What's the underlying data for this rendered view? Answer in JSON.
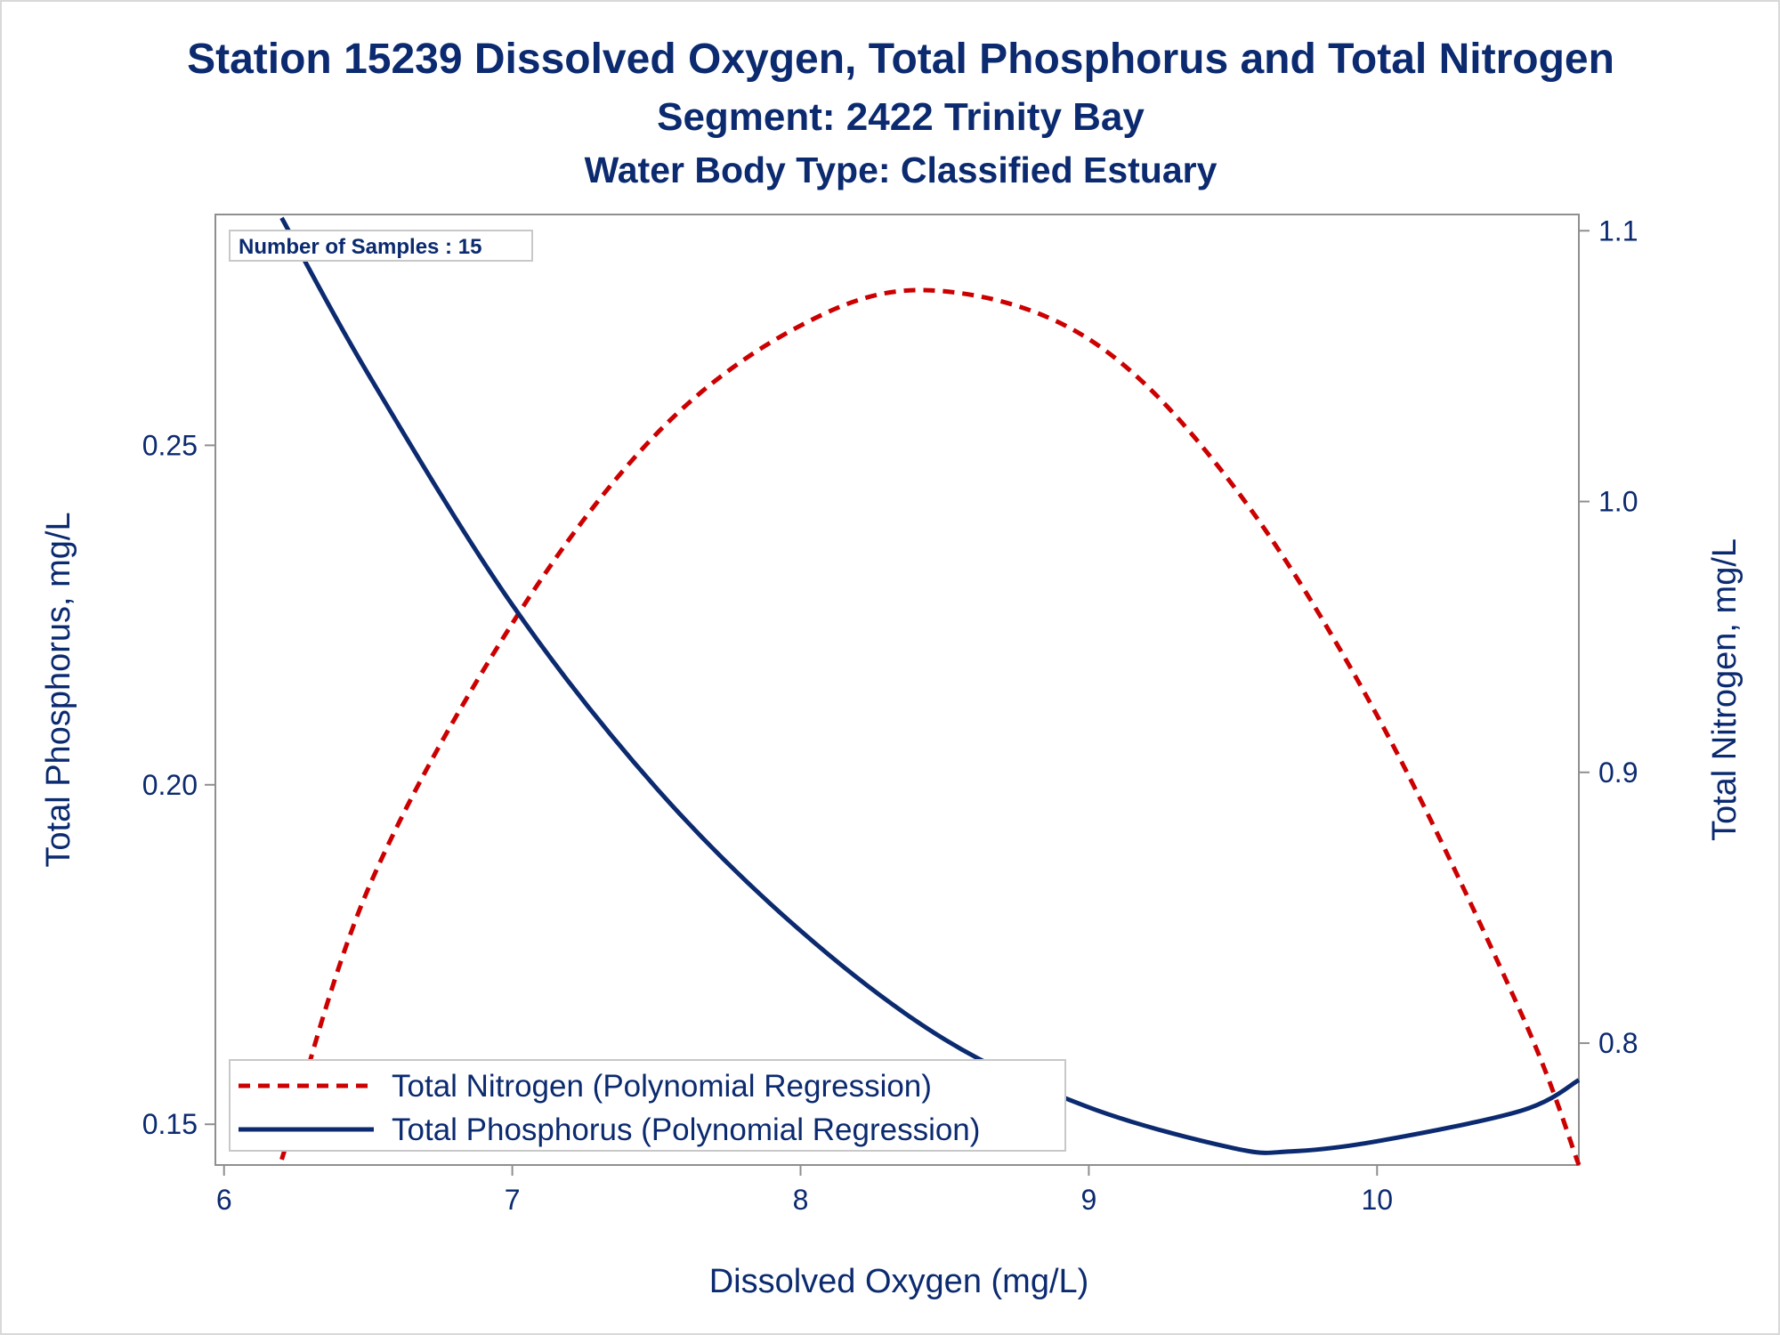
{
  "colors": {
    "text": "#0b2a6f",
    "axis": "#8f8f8f",
    "nitrogen": "#cc0000",
    "phosphorus": "#0b2a6f"
  },
  "chart_data": {
    "type": "line",
    "title": "Station 15239  Dissolved Oxygen, Total Phosphorus and Total Nitrogen",
    "subtitle": "Segment: 2422  Trinity Bay",
    "subtitle2": "Water Body Type: Classified Estuary",
    "xlabel": "Dissolved Oxygen (mg/L)",
    "ylabel_left": "Total Phosphorus, mg/L",
    "ylabel_right": "Total Nitrogen, mg/L",
    "xlim": [
      5.97,
      10.7
    ],
    "ylim_left": [
      0.144,
      0.284
    ],
    "ylim_right": [
      0.755,
      1.106
    ],
    "x_ticks": [
      "6",
      "7",
      "8",
      "9",
      "10"
    ],
    "y_left_ticks": [
      "0.15",
      "0.20",
      "0.25"
    ],
    "y_right_ticks": [
      "0.8",
      "0.9",
      "1.0",
      "1.1"
    ],
    "grid": false,
    "legend_position": "bottom-left inside",
    "annotation": "Number of Samples : 15",
    "series": [
      {
        "name": "Total Nitrogen (Polynomial Regression)",
        "axis": "right",
        "style": "dashed",
        "x": [
          6.2,
          6.5,
          7.0,
          7.5,
          8.0,
          8.45,
          9.0,
          9.5,
          10.0,
          10.5,
          10.7
        ],
        "y": [
          0.757,
          0.857,
          0.955,
          1.025,
          1.065,
          1.078,
          1.06,
          1.006,
          0.921,
          0.811,
          0.755
        ]
      },
      {
        "name": "Total Phosphorus (Polynomial Regression)",
        "axis": "left",
        "style": "solid",
        "x": [
          6.2,
          6.5,
          7.0,
          7.5,
          8.0,
          8.5,
          9.0,
          9.5,
          9.7,
          10.0,
          10.5,
          10.7
        ],
        "y": [
          0.2835,
          0.2605,
          0.2265,
          0.1995,
          0.1785,
          0.1625,
          0.1525,
          0.1465,
          0.146,
          0.1475,
          0.152,
          0.1565
        ]
      }
    ]
  }
}
